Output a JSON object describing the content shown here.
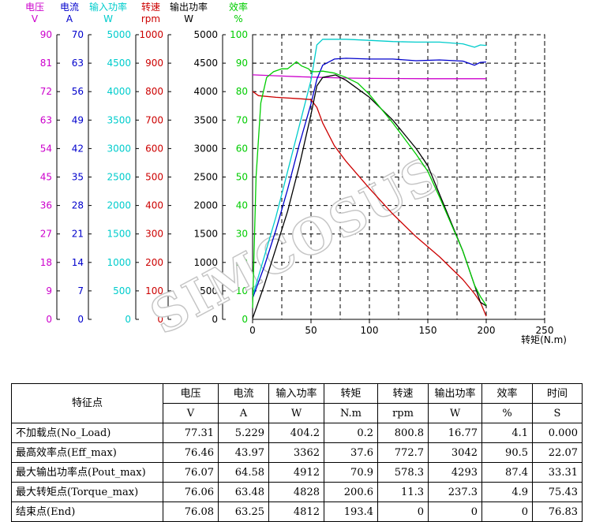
{
  "chart_data": {
    "type": "line",
    "x_axis": {
      "label": "转矩(N.m)",
      "ticks": [
        0,
        50,
        100,
        150,
        200,
        250
      ],
      "range": [
        0,
        250
      ]
    },
    "y_axes": [
      {
        "name": "电压",
        "unit": "V",
        "color": "#cc00cc",
        "range": [
          0,
          90
        ],
        "ticks": [
          0,
          9,
          18,
          27,
          36,
          45,
          54,
          63,
          72,
          81,
          90
        ]
      },
      {
        "name": "电流",
        "unit": "A",
        "color": "#0000cc",
        "range": [
          0,
          70
        ],
        "ticks": [
          0,
          7,
          14,
          21,
          28,
          35,
          42,
          49,
          56,
          63,
          70
        ]
      },
      {
        "name": "输入功率",
        "unit": "W",
        "color": "#00cccc",
        "range": [
          0,
          5000
        ],
        "ticks": [
          0,
          500,
          1000,
          1500,
          2000,
          2500,
          3000,
          3500,
          4000,
          4500,
          5000
        ]
      },
      {
        "name": "转速",
        "unit": "rpm",
        "color": "#cc0000",
        "range": [
          0,
          1000
        ],
        "ticks": [
          0,
          100,
          200,
          300,
          400,
          500,
          600,
          700,
          800,
          900,
          1000
        ]
      },
      {
        "name": "输出功率",
        "unit": "W",
        "color": "#000000",
        "range": [
          0,
          5000
        ],
        "ticks": [
          0,
          500,
          1000,
          1500,
          2000,
          2500,
          3000,
          3500,
          4000,
          4500,
          5000
        ]
      },
      {
        "name": "效率",
        "unit": "%",
        "color": "#00cc00",
        "range": [
          0,
          100
        ],
        "ticks": [
          0,
          10,
          20,
          30,
          40,
          50,
          60,
          70,
          80,
          90,
          100
        ]
      }
    ],
    "grid": true,
    "watermark": "SIMCOSUS",
    "series": [
      {
        "axis": 0,
        "color": "#cc00cc",
        "points": [
          [
            0,
            77.3
          ],
          [
            20,
            77.0
          ],
          [
            40,
            76.7
          ],
          [
            60,
            76.5
          ],
          [
            80,
            76.3
          ],
          [
            100,
            76.2
          ],
          [
            150,
            76.1
          ],
          [
            200,
            76.1
          ]
        ]
      },
      {
        "axis": 1,
        "color": "#0000cc",
        "points": [
          [
            0,
            5.2
          ],
          [
            10,
            13
          ],
          [
            20,
            22
          ],
          [
            30,
            32
          ],
          [
            40,
            43
          ],
          [
            50,
            53
          ],
          [
            55,
            59
          ],
          [
            60,
            62.5
          ],
          [
            70,
            64
          ],
          [
            80,
            64.2
          ],
          [
            100,
            64
          ],
          [
            120,
            64
          ],
          [
            140,
            63.6
          ],
          [
            160,
            63.8
          ],
          [
            180,
            63.5
          ],
          [
            190,
            62.5
          ],
          [
            195,
            63.2
          ],
          [
            200,
            63.3
          ]
        ]
      },
      {
        "axis": 2,
        "color": "#00cccc",
        "points": [
          [
            0,
            404
          ],
          [
            10,
            1100
          ],
          [
            20,
            1800
          ],
          [
            30,
            2600
          ],
          [
            40,
            3400
          ],
          [
            50,
            4200
          ],
          [
            55,
            4820
          ],
          [
            60,
            4920
          ],
          [
            80,
            4920
          ],
          [
            100,
            4900
          ],
          [
            120,
            4880
          ],
          [
            140,
            4870
          ],
          [
            160,
            4870
          ],
          [
            180,
            4840
          ],
          [
            190,
            4780
          ],
          [
            195,
            4820
          ],
          [
            200,
            4812
          ]
        ]
      },
      {
        "axis": 3,
        "color": "#cc0000",
        "points": [
          [
            0,
            800.8
          ],
          [
            5,
            786
          ],
          [
            20,
            780
          ],
          [
            40,
            775
          ],
          [
            50,
            772
          ],
          [
            55,
            745
          ],
          [
            60,
            690
          ],
          [
            70,
            610
          ],
          [
            80,
            555
          ],
          [
            100,
            460
          ],
          [
            120,
            370
          ],
          [
            140,
            290
          ],
          [
            160,
            220
          ],
          [
            180,
            140
          ],
          [
            190,
            90
          ],
          [
            195,
            60
          ],
          [
            200,
            11
          ]
        ]
      },
      {
        "axis": 4,
        "color": "#000000",
        "points": [
          [
            0,
            17
          ],
          [
            10,
            600
          ],
          [
            20,
            1250
          ],
          [
            30,
            1900
          ],
          [
            40,
            2700
          ],
          [
            50,
            3600
          ],
          [
            55,
            4100
          ],
          [
            60,
            4250
          ],
          [
            71,
            4293
          ],
          [
            80,
            4200
          ],
          [
            100,
            3900
          ],
          [
            120,
            3500
          ],
          [
            140,
            3000
          ],
          [
            150,
            2700
          ],
          [
            160,
            2200
          ],
          [
            180,
            1200
          ],
          [
            190,
            600
          ],
          [
            195,
            300
          ],
          [
            200,
            237
          ]
        ]
      },
      {
        "axis": 5,
        "color": "#00cc00",
        "points": [
          [
            0,
            4
          ],
          [
            3,
            50
          ],
          [
            7,
            76
          ],
          [
            12,
            85
          ],
          [
            18,
            87
          ],
          [
            25,
            88
          ],
          [
            30,
            88
          ],
          [
            37.6,
            90.5
          ],
          [
            42,
            89
          ],
          [
            48,
            88
          ],
          [
            50,
            87
          ],
          [
            55,
            87
          ],
          [
            60,
            87.2
          ],
          [
            70,
            86.5
          ],
          [
            80,
            85
          ],
          [
            90,
            83
          ],
          [
            100,
            79
          ],
          [
            120,
            69
          ],
          [
            140,
            58
          ],
          [
            150,
            52
          ],
          [
            160,
            43
          ],
          [
            180,
            24
          ],
          [
            190,
            12
          ],
          [
            195,
            8
          ],
          [
            200,
            4.9
          ]
        ]
      }
    ]
  },
  "table": {
    "header_top": [
      "特征点",
      "电压",
      "电流",
      "输入功率",
      "转矩",
      "转速",
      "输出功率",
      "效率",
      "时间"
    ],
    "header_units": [
      "V",
      "A",
      "W",
      "N.m",
      "rpm",
      "W",
      "%",
      "S"
    ],
    "rows": [
      [
        "不加载点(No_Load)",
        "77.31",
        "5.229",
        "404.2",
        "0.2",
        "800.8",
        "16.77",
        "4.1",
        "0.000"
      ],
      [
        "最高效率点(Eff_max)",
        "76.46",
        "43.97",
        "3362",
        "37.6",
        "772.7",
        "3042",
        "90.5",
        "22.07"
      ],
      [
        "最大输出功率点(Pout_max)",
        "76.07",
        "64.58",
        "4912",
        "70.9",
        "578.3",
        "4293",
        "87.4",
        "33.31"
      ],
      [
        "最大转矩点(Torque_max)",
        "76.06",
        "63.48",
        "4828",
        "200.6",
        "11.3",
        "237.3",
        "4.9",
        "75.43"
      ],
      [
        "结束点(End)",
        "76.08",
        "63.25",
        "4812",
        "193.4",
        "0",
        "0",
        "0",
        "76.83"
      ]
    ]
  }
}
